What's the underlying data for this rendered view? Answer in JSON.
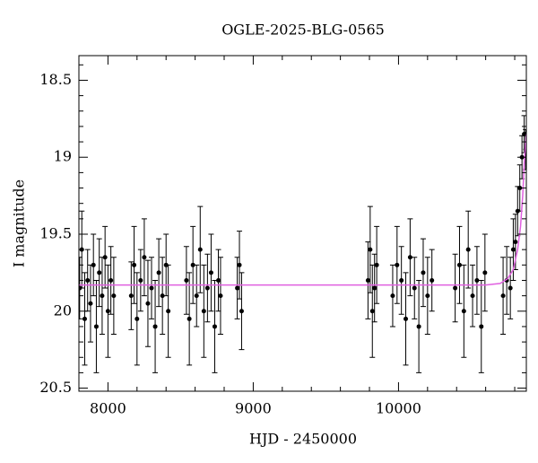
{
  "chart_data": {
    "type": "scatter",
    "title": "OGLE-2025-BLG-0565",
    "xlabel": "HJD - 2450000",
    "ylabel": "I magnitude",
    "xlim": [
      7800,
      10880
    ],
    "ylim": [
      20.52,
      18.34
    ],
    "xticks": [
      8000,
      9000,
      10000
    ],
    "yticks": [
      18.5,
      19,
      19.5,
      20,
      20.5
    ],
    "xminorticks": [
      7800,
      8200,
      8400,
      8600,
      8800,
      9200,
      9400,
      9600,
      9800,
      10200,
      10400,
      10600,
      10800
    ],
    "yminorticks": [
      18.4,
      18.6,
      18.7,
      18.8,
      18.9,
      19.1,
      19.2,
      19.3,
      19.4,
      19.6,
      19.7,
      19.8,
      19.9,
      20.1,
      20.2,
      20.3,
      20.4
    ],
    "series": [
      {
        "type": "errorbar",
        "color": "#000000",
        "x": [
          7805,
          7820,
          7840,
          7860,
          7880,
          7900,
          7920,
          7940,
          7960,
          7980,
          8000,
          8020,
          8040,
          8160,
          8180,
          8200,
          8225,
          8250,
          8275,
          8300,
          8325,
          8350,
          8375,
          8400,
          8415,
          8540,
          8560,
          8585,
          8610,
          8635,
          8660,
          8685,
          8710,
          8735,
          8760,
          8775,
          8890,
          8905,
          8920,
          9790,
          9805,
          9820,
          9835,
          9850,
          9960,
          9990,
          10020,
          10050,
          10080,
          10110,
          10140,
          10170,
          10200,
          10230,
          10390,
          10420,
          10450,
          10480,
          10510,
          10540,
          10570,
          10595,
          10720,
          10745,
          10770,
          10790,
          10805,
          10820,
          10835,
          10850,
          10865,
          10875
        ],
        "values": [
          19.85,
          19.6,
          20.05,
          19.8,
          19.95,
          19.7,
          20.1,
          19.75,
          19.9,
          19.65,
          20.0,
          19.8,
          19.9,
          19.9,
          19.7,
          20.05,
          19.8,
          19.65,
          19.95,
          19.85,
          20.1,
          19.75,
          19.9,
          19.7,
          20.0,
          19.8,
          20.05,
          19.7,
          19.9,
          19.6,
          20.0,
          19.85,
          19.75,
          20.1,
          19.8,
          19.9,
          19.85,
          19.7,
          20.0,
          19.8,
          19.6,
          20.0,
          19.85,
          19.7,
          19.9,
          19.7,
          19.8,
          20.05,
          19.65,
          19.85,
          20.1,
          19.75,
          19.9,
          19.8,
          19.85,
          19.7,
          20.0,
          19.6,
          19.9,
          19.8,
          20.1,
          19.75,
          19.9,
          19.8,
          19.85,
          19.6,
          19.55,
          19.35,
          19.2,
          19.0,
          18.85,
          18.95
        ],
        "errors": [
          0.2,
          0.25,
          0.3,
          0.2,
          0.25,
          0.2,
          0.3,
          0.22,
          0.25,
          0.2,
          0.3,
          0.22,
          0.25,
          0.22,
          0.25,
          0.3,
          0.2,
          0.25,
          0.28,
          0.2,
          0.3,
          0.22,
          0.25,
          0.2,
          0.3,
          0.22,
          0.3,
          0.25,
          0.2,
          0.28,
          0.3,
          0.22,
          0.25,
          0.3,
          0.2,
          0.25,
          0.2,
          0.22,
          0.25,
          0.25,
          0.28,
          0.3,
          0.22,
          0.25,
          0.2,
          0.25,
          0.22,
          0.3,
          0.25,
          0.2,
          0.3,
          0.22,
          0.25,
          0.2,
          0.22,
          0.25,
          0.3,
          0.25,
          0.2,
          0.22,
          0.3,
          0.25,
          0.25,
          0.22,
          0.2,
          0.2,
          0.18,
          0.16,
          0.15,
          0.14,
          0.12,
          0.13
        ]
      },
      {
        "type": "line",
        "color": "#e060e0",
        "x": [
          7800,
          10600,
          10700,
          10750,
          10790,
          10820,
          10840,
          10855,
          10865,
          10875,
          10880
        ],
        "values": [
          19.83,
          19.83,
          19.82,
          19.79,
          19.73,
          19.6,
          19.45,
          19.25,
          19.05,
          18.9,
          18.85
        ]
      }
    ]
  }
}
